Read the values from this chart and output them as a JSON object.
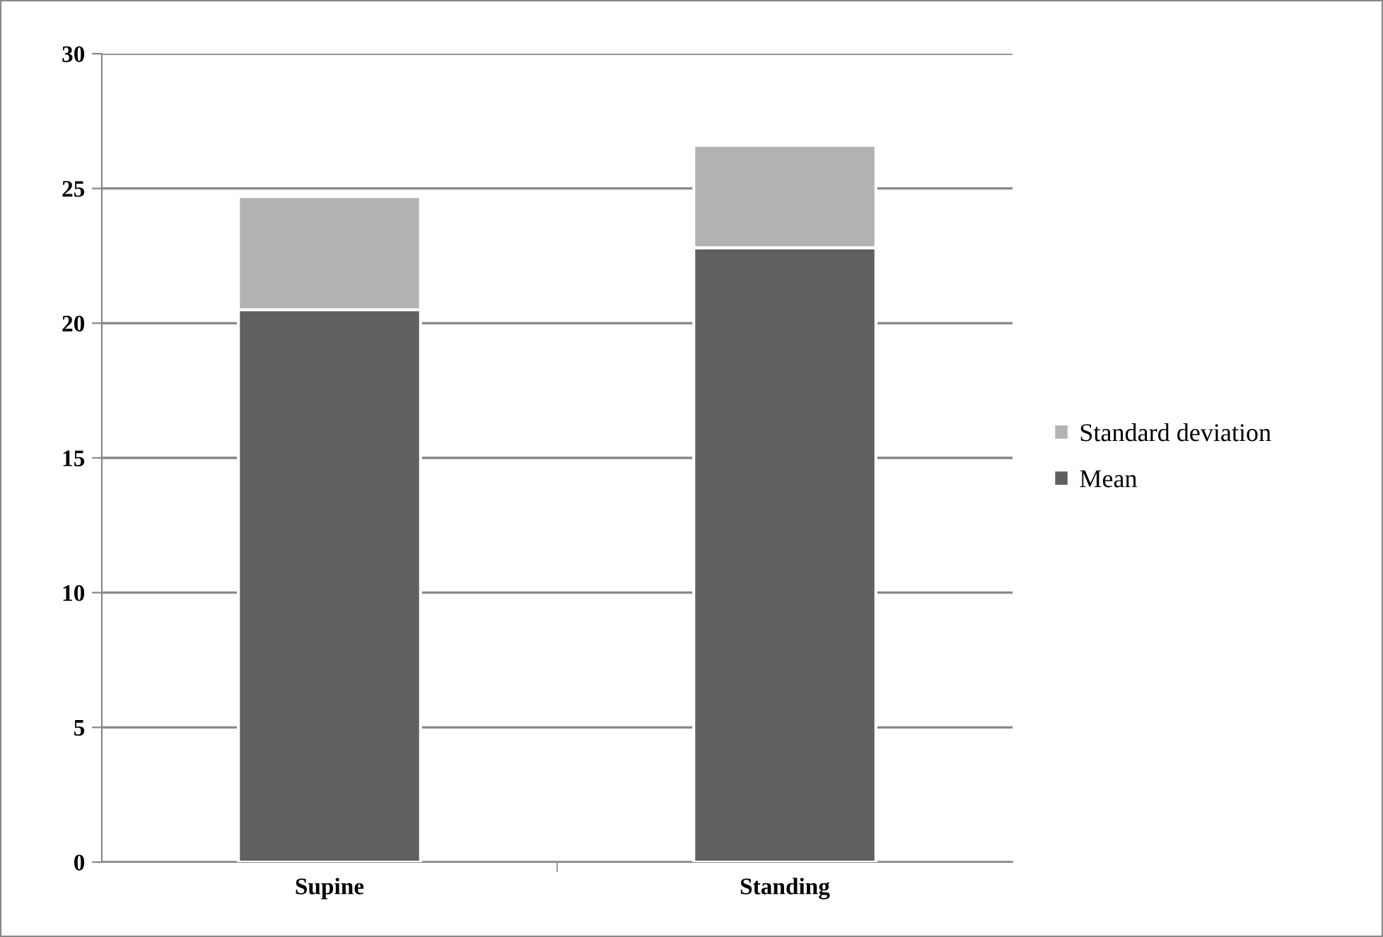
{
  "chart_data": {
    "type": "bar",
    "stacked": true,
    "categories": [
      "Supine",
      "Standing"
    ],
    "series": [
      {
        "name": "Mean",
        "color": "#606060",
        "values": [
          20.5,
          22.8
        ]
      },
      {
        "name": "Standard deviation",
        "color": "#b2b2b2",
        "values": [
          4.2,
          3.8
        ]
      }
    ],
    "ylim": [
      0,
      30
    ],
    "yticks": [
      0,
      5,
      10,
      15,
      20,
      25,
      30
    ],
    "grid": "y",
    "legend": "right"
  }
}
